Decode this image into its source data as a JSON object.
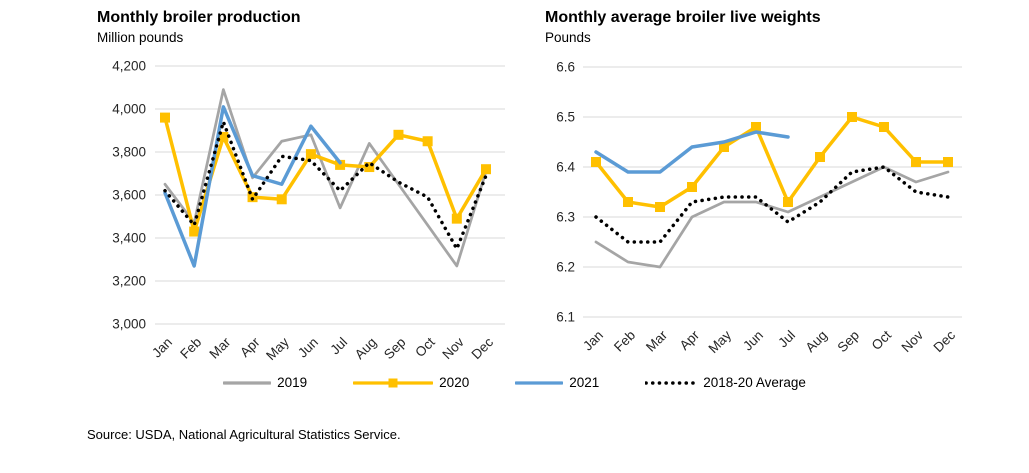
{
  "charts": {
    "left_title": "Monthly broiler production",
    "left_unit": "Million pounds",
    "right_title": "Monthly average broiler live weights",
    "right_unit": "Pounds"
  },
  "chart_data": [
    {
      "type": "line",
      "title": "Monthly broiler production",
      "ylabel": "Million pounds",
      "xlabel": "",
      "grid": true,
      "legend_position": "bottom",
      "categories": [
        "Jan",
        "Feb",
        "Mar",
        "Apr",
        "May",
        "Jun",
        "Jul",
        "Aug",
        "Sep",
        "Oct",
        "Nov",
        "Dec"
      ],
      "ylim": [
        3000,
        4200
      ],
      "ytick_values": [
        4200,
        4000,
        3800,
        3600,
        3400,
        3200,
        3000
      ],
      "ytick_labels": [
        "4,200",
        "4,000",
        "3,800",
        "3,600",
        "3,400",
        "3,200",
        "3,000"
      ],
      "series": [
        {
          "name": "2019",
          "color": "#A5A5A5",
          "style": "solid",
          "marker": "none",
          "width": 2.75,
          "values": [
            3650,
            3470,
            4090,
            3680,
            3850,
            3880,
            3540,
            3840,
            3650,
            3460,
            3270,
            3710
          ]
        },
        {
          "name": "2020",
          "color": "#FFC000",
          "style": "solid",
          "marker": "square",
          "width": 3.5,
          "values": [
            3960,
            3430,
            3870,
            3590,
            3580,
            3790,
            3740,
            3730,
            3880,
            3850,
            3490,
            3720
          ]
        },
        {
          "name": "2021",
          "color": "#5B9BD5",
          "style": "solid",
          "marker": "none",
          "width": 3.5,
          "values": [
            3610,
            3270,
            4010,
            3690,
            3650,
            3920,
            3750,
            null,
            null,
            null,
            null,
            null
          ]
        },
        {
          "name": "2018-20 Average",
          "color": "#000000",
          "style": "dotted",
          "marker": "none",
          "width": 3.5,
          "values": [
            3620,
            3460,
            3940,
            3580,
            3780,
            3760,
            3620,
            3750,
            3660,
            3590,
            3350,
            3690
          ]
        }
      ]
    },
    {
      "type": "line",
      "title": "Monthly average broiler live weights",
      "ylabel": "Pounds",
      "xlabel": "",
      "grid": true,
      "legend_position": "bottom",
      "categories": [
        "Jan",
        "Feb",
        "Mar",
        "Apr",
        "May",
        "Jun",
        "Jul",
        "Aug",
        "Sep",
        "Oct",
        "Nov",
        "Dec"
      ],
      "ylim": [
        6.1,
        6.6
      ],
      "ytick_values": [
        6.6,
        6.5,
        6.4,
        6.3,
        6.2,
        6.1
      ],
      "ytick_labels": [
        "6.6",
        "6.5",
        "6.4",
        "6.3",
        "6.2",
        "6.1"
      ],
      "series": [
        {
          "name": "2019",
          "color": "#A5A5A5",
          "style": "solid",
          "marker": "none",
          "width": 2.75,
          "values": [
            6.25,
            6.21,
            6.2,
            6.3,
            6.33,
            6.33,
            6.31,
            6.34,
            6.37,
            6.4,
            6.37,
            6.39
          ]
        },
        {
          "name": "2020",
          "color": "#FFC000",
          "style": "solid",
          "marker": "square",
          "width": 3.5,
          "values": [
            6.41,
            6.33,
            6.32,
            6.36,
            6.44,
            6.48,
            6.33,
            6.42,
            6.5,
            6.48,
            6.41,
            6.41
          ]
        },
        {
          "name": "2021",
          "color": "#5B9BD5",
          "style": "solid",
          "marker": "none",
          "width": 3.5,
          "values": [
            6.43,
            6.39,
            6.39,
            6.44,
            6.45,
            6.47,
            6.46,
            null,
            null,
            null,
            null,
            null
          ]
        },
        {
          "name": "2018-20 Average",
          "color": "#000000",
          "style": "dotted",
          "marker": "none",
          "width": 3.5,
          "values": [
            6.3,
            6.25,
            6.25,
            6.33,
            6.34,
            6.34,
            6.29,
            6.33,
            6.39,
            6.4,
            6.35,
            6.34
          ]
        }
      ]
    }
  ],
  "legend_items": [
    {
      "label": "2019",
      "color": "#A5A5A5",
      "style": "solid",
      "marker": "none"
    },
    {
      "label": "2020",
      "color": "#FFC000",
      "style": "solid",
      "marker": "square"
    },
    {
      "label": "2021",
      "color": "#5B9BD5",
      "style": "solid",
      "marker": "none"
    },
    {
      "label": "2018-20 Average",
      "color": "#000000",
      "style": "dotted",
      "marker": "none"
    }
  ],
  "colors": {
    "gridline": "#D9D9D9",
    "axis_text": "#262626"
  },
  "source": "Source: USDA, National Agricultural Statistics Service."
}
